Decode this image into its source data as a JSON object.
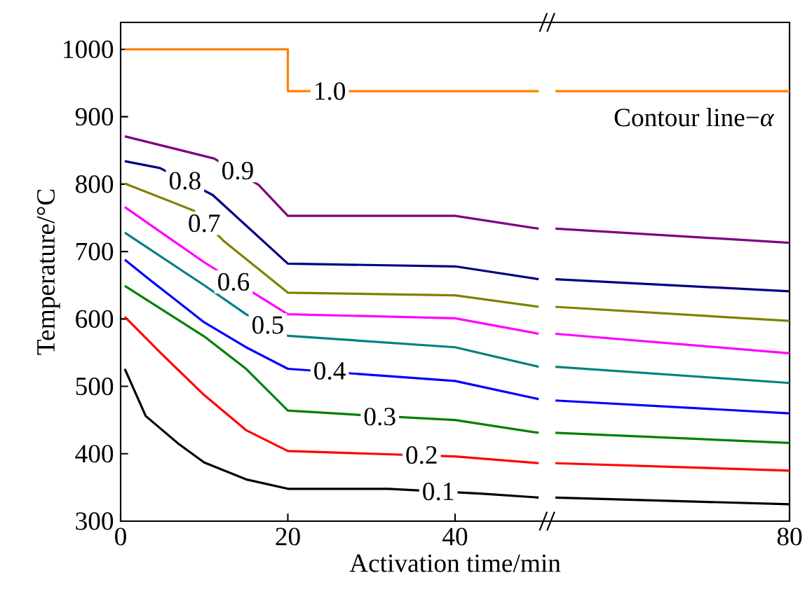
{
  "chart_data": {
    "type": "line",
    "xlabel": "Activation time/min",
    "ylabel": "Temperature/°C",
    "xlim": [
      0,
      80
    ],
    "ylim": [
      300,
      1040
    ],
    "xticks": [
      0,
      20,
      40,
      80
    ],
    "yticks": [
      300,
      400,
      500,
      600,
      700,
      800,
      900,
      1000
    ],
    "grid": false,
    "marker": "none",
    "line_style": "solid",
    "series": [
      {
        "color": "#000000",
        "x": [
          0.5,
          3,
          7,
          10,
          15,
          20,
          32,
          43,
          50,
          51,
          52,
          80
        ],
        "values": [
          526,
          456,
          414,
          387,
          362,
          348,
          348,
          341,
          335,
          null,
          335,
          325
        ]
      },
      {
        "color": "#ff0000",
        "x": [
          0.5,
          5,
          10,
          15,
          20,
          30,
          40,
          50,
          51,
          52,
          80
        ],
        "values": [
          603,
          547,
          487,
          435,
          404,
          400,
          396,
          386,
          null,
          386,
          375
        ]
      },
      {
        "color": "#008000",
        "x": [
          0.5,
          10,
          15,
          20,
          28,
          40,
          50,
          51,
          52,
          80
        ],
        "values": [
          649,
          574,
          526,
          464,
          458,
          450,
          431,
          null,
          431,
          416
        ]
      },
      {
        "color": "#0000ff",
        "x": [
          0.5,
          3.6,
          10,
          15,
          20,
          40,
          50,
          51,
          52,
          80
        ],
        "values": [
          688,
          657,
          595,
          558,
          526,
          508,
          481,
          null,
          479,
          460
        ]
      },
      {
        "color": "#008080",
        "x": [
          0.5,
          10,
          15,
          20,
          40,
          50,
          51,
          52,
          80
        ],
        "values": [
          728,
          650,
          607,
          575,
          558,
          529,
          null,
          529,
          505
        ]
      },
      {
        "color": "#ff00ff",
        "x": [
          0.5,
          10,
          17,
          20,
          40,
          50,
          51,
          52,
          80
        ],
        "values": [
          766,
          684,
          630,
          607,
          601,
          578,
          null,
          578,
          549
        ]
      },
      {
        "color": "#808000",
        "x": [
          0.5,
          8.7,
          12.3,
          20,
          40,
          50,
          51,
          52,
          80
        ],
        "values": [
          801,
          761,
          716,
          639,
          635,
          618,
          null,
          618,
          597
        ]
      },
      {
        "color": "#000080",
        "x": [
          0.5,
          4.7,
          11,
          20,
          40,
          50,
          51,
          52,
          80
        ],
        "values": [
          834,
          824,
          784,
          682,
          678,
          659,
          null,
          659,
          641
        ]
      },
      {
        "color": "#800080",
        "x": [
          0.5,
          11.2,
          16.5,
          20,
          40,
          50,
          51,
          52,
          80
        ],
        "values": [
          871,
          838,
          799,
          753,
          753,
          734,
          null,
          734,
          713
        ]
      },
      {
        "color": "#ff8000",
        "x": [
          0.5,
          20,
          20,
          50,
          51,
          52,
          80
        ],
        "values": [
          1000,
          1000,
          938,
          938,
          null,
          938,
          938
        ]
      }
    ],
    "annotations": [
      {
        "text": "0.1",
        "x": 38,
        "y": 344
      },
      {
        "text": "0.2",
        "x": 36,
        "y": 398
      },
      {
        "text": "0.3",
        "x": 31,
        "y": 455
      },
      {
        "text": "0.4",
        "x": 25,
        "y": 523
      },
      {
        "text": "0.5",
        "x": 17.6,
        "y": 591
      },
      {
        "text": "0.6",
        "x": 13.5,
        "y": 655
      },
      {
        "text": "0.7",
        "x": 10,
        "y": 742
      },
      {
        "text": "0.8",
        "x": 7.7,
        "y": 805
      },
      {
        "text": "0.9",
        "x": 14,
        "y": 820
      },
      {
        "text": "1.0",
        "x": 25,
        "y": 938
      },
      "Contour line−*α*"
    ]
  }
}
